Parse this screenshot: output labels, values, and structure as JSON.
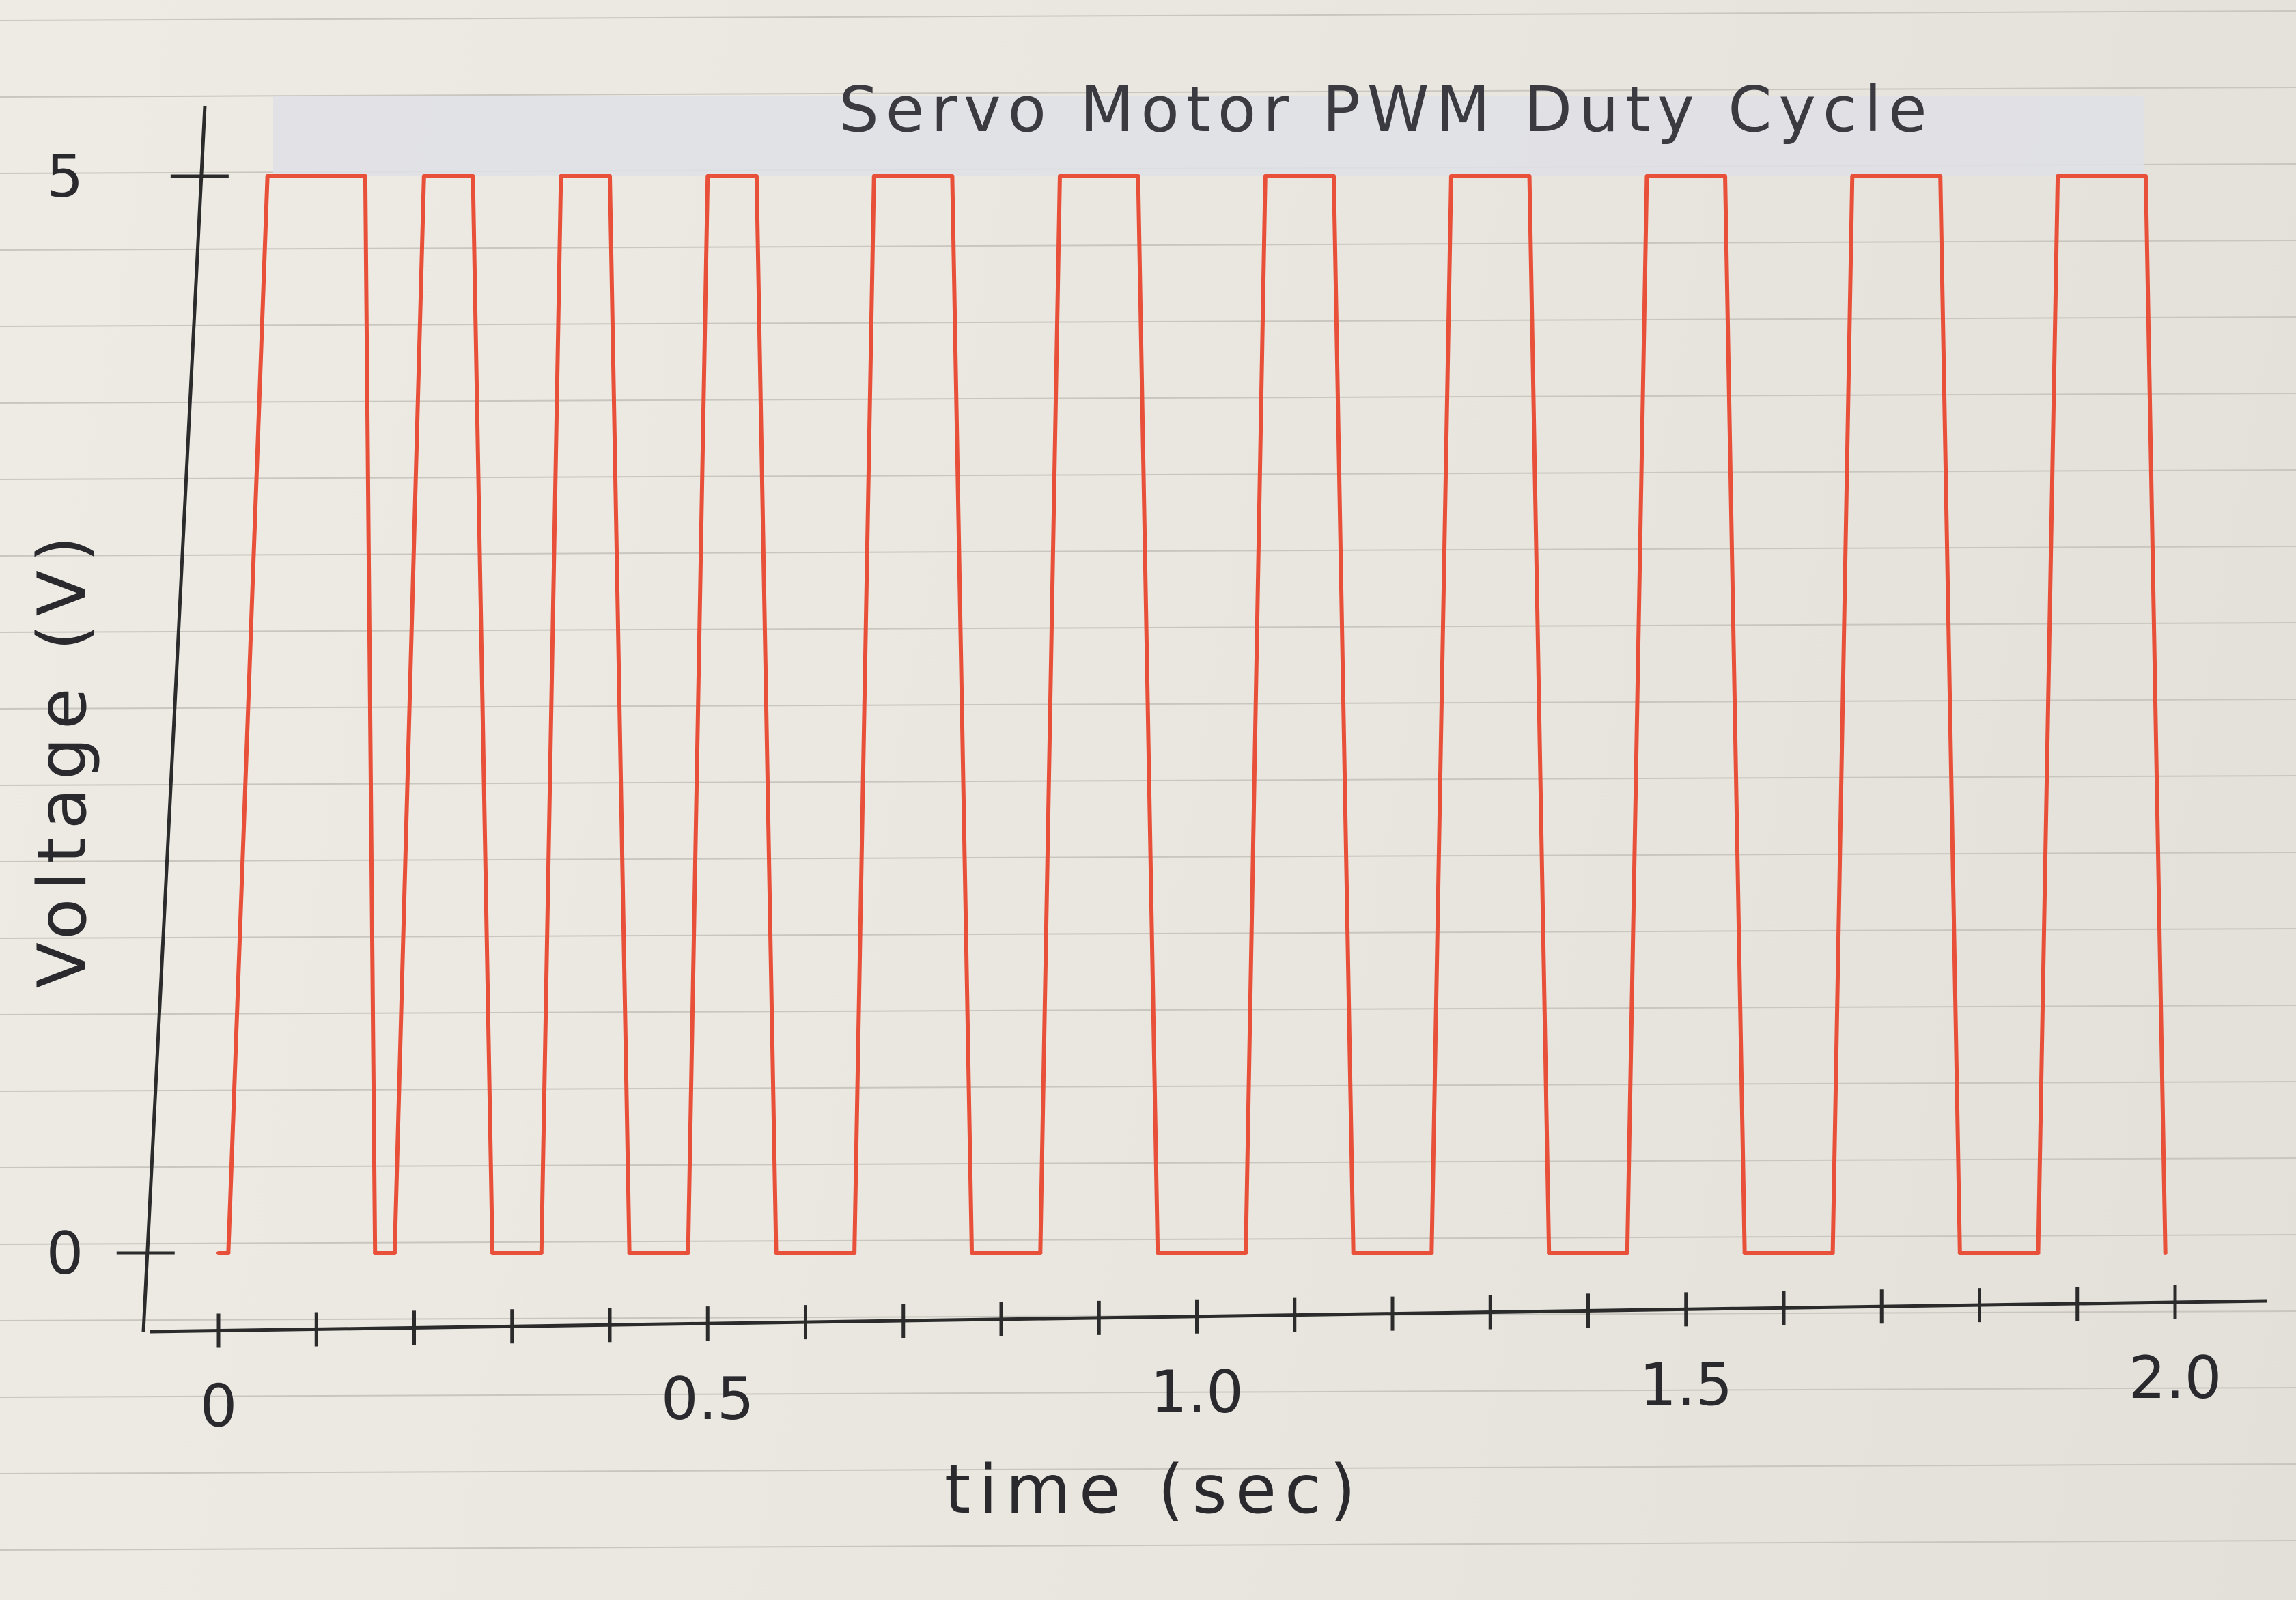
{
  "chart_data": {
    "type": "line",
    "title": "Servo Motor PWM Duty Cycle",
    "xlabel": "time (sec)",
    "ylabel": "Voltage (V)",
    "xlim": [
      0,
      2.0
    ],
    "ylim": [
      0,
      5
    ],
    "x_tick_labels": [
      "0",
      "0.5",
      "1.0",
      "1.5",
      "2.0"
    ],
    "y_tick_labels": [
      "0",
      "5"
    ],
    "grid": false,
    "legend": "none",
    "line_color": "#e8503a",
    "series": [
      {
        "x": [
          0,
          0.01,
          0.05,
          0.15,
          0.16,
          0.18,
          0.21,
          0.26,
          0.28,
          0.33,
          0.35,
          0.4,
          0.42,
          0.48,
          0.5,
          0.55,
          0.57,
          0.65,
          0.67,
          0.75,
          0.77,
          0.84,
          0.86,
          0.94,
          0.96,
          1.05,
          1.07,
          1.14,
          1.16,
          1.24,
          1.26,
          1.34,
          1.36,
          1.44,
          1.46,
          1.54,
          1.56,
          1.65,
          1.67,
          1.76,
          1.78,
          1.86,
          1.88,
          1.97,
          1.99
        ],
        "y": [
          0,
          0,
          5,
          5,
          0,
          0,
          5,
          5,
          0,
          0,
          5,
          5,
          0,
          0,
          5,
          5,
          0,
          0,
          5,
          5,
          0,
          0,
          5,
          5,
          0,
          0,
          5,
          5,
          0,
          0,
          5,
          5,
          0,
          0,
          5,
          5,
          0,
          0,
          5,
          5,
          0,
          0,
          5,
          5,
          0
        ]
      }
    ]
  }
}
